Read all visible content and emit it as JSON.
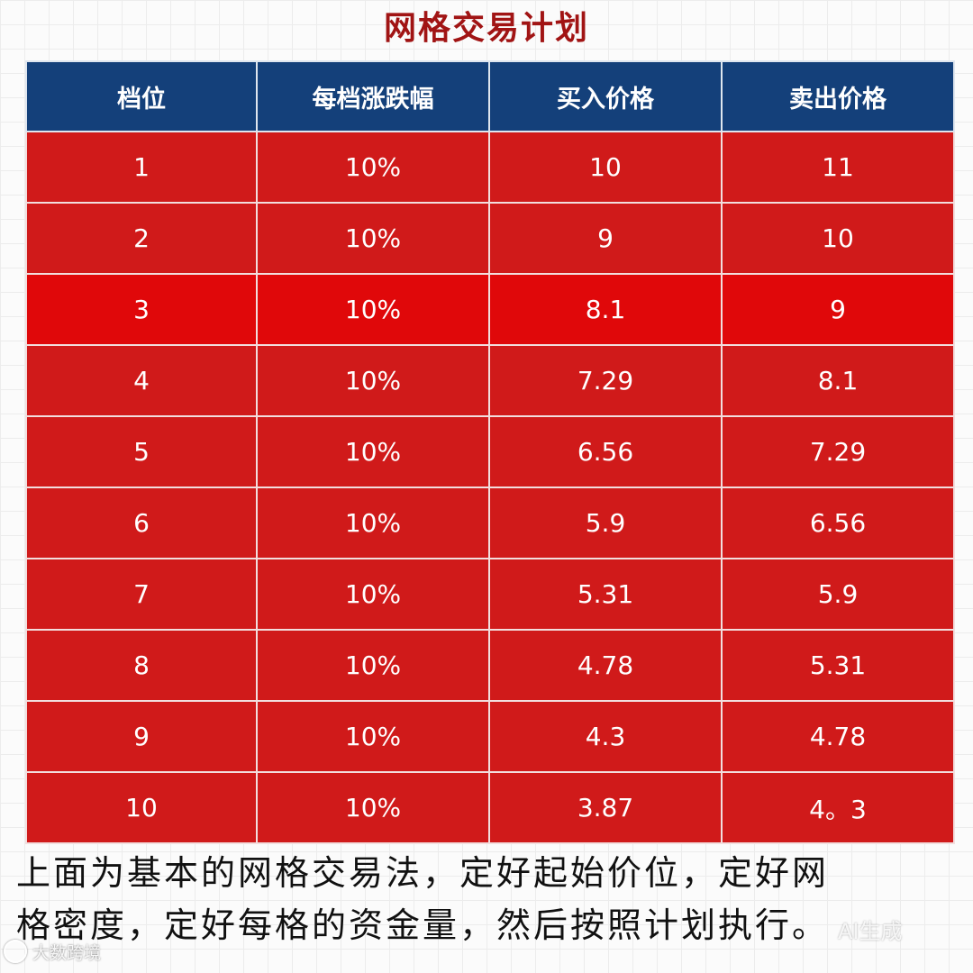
{
  "title": "网格交易计划",
  "table": {
    "headers": [
      "档位",
      "每档涨跌幅",
      "买入价格",
      "卖出价格"
    ],
    "rows": [
      [
        "1",
        "10%",
        "10",
        "11"
      ],
      [
        "2",
        "10%",
        "9",
        "10"
      ],
      [
        "3",
        "10%",
        "8.1",
        "9"
      ],
      [
        "4",
        "10%",
        "7.29",
        "8.1"
      ],
      [
        "5",
        "10%",
        "6.56",
        "7.29"
      ],
      [
        "6",
        "10%",
        "5.9",
        "6.56"
      ],
      [
        "7",
        "10%",
        "5.31",
        "5.9"
      ],
      [
        "8",
        "10%",
        "4.78",
        "5.31"
      ],
      [
        "9",
        "10%",
        "4.3",
        "4.78"
      ],
      [
        "10",
        "10%",
        "3.87",
        "4。3"
      ]
    ]
  },
  "caption": {
    "line1": "上面为基本的网格交易法，定好起始价位，定好网",
    "line2": "格密度，定好每格的资金量，然后按照计划执行。"
  },
  "watermarks": {
    "left": "大数跨境",
    "right": "AI生成"
  },
  "colors": {
    "title": "#a11414",
    "header_bg": "#14407a",
    "row_bg": "#d01a1a",
    "row_highlight_bg": "#e0080a"
  }
}
